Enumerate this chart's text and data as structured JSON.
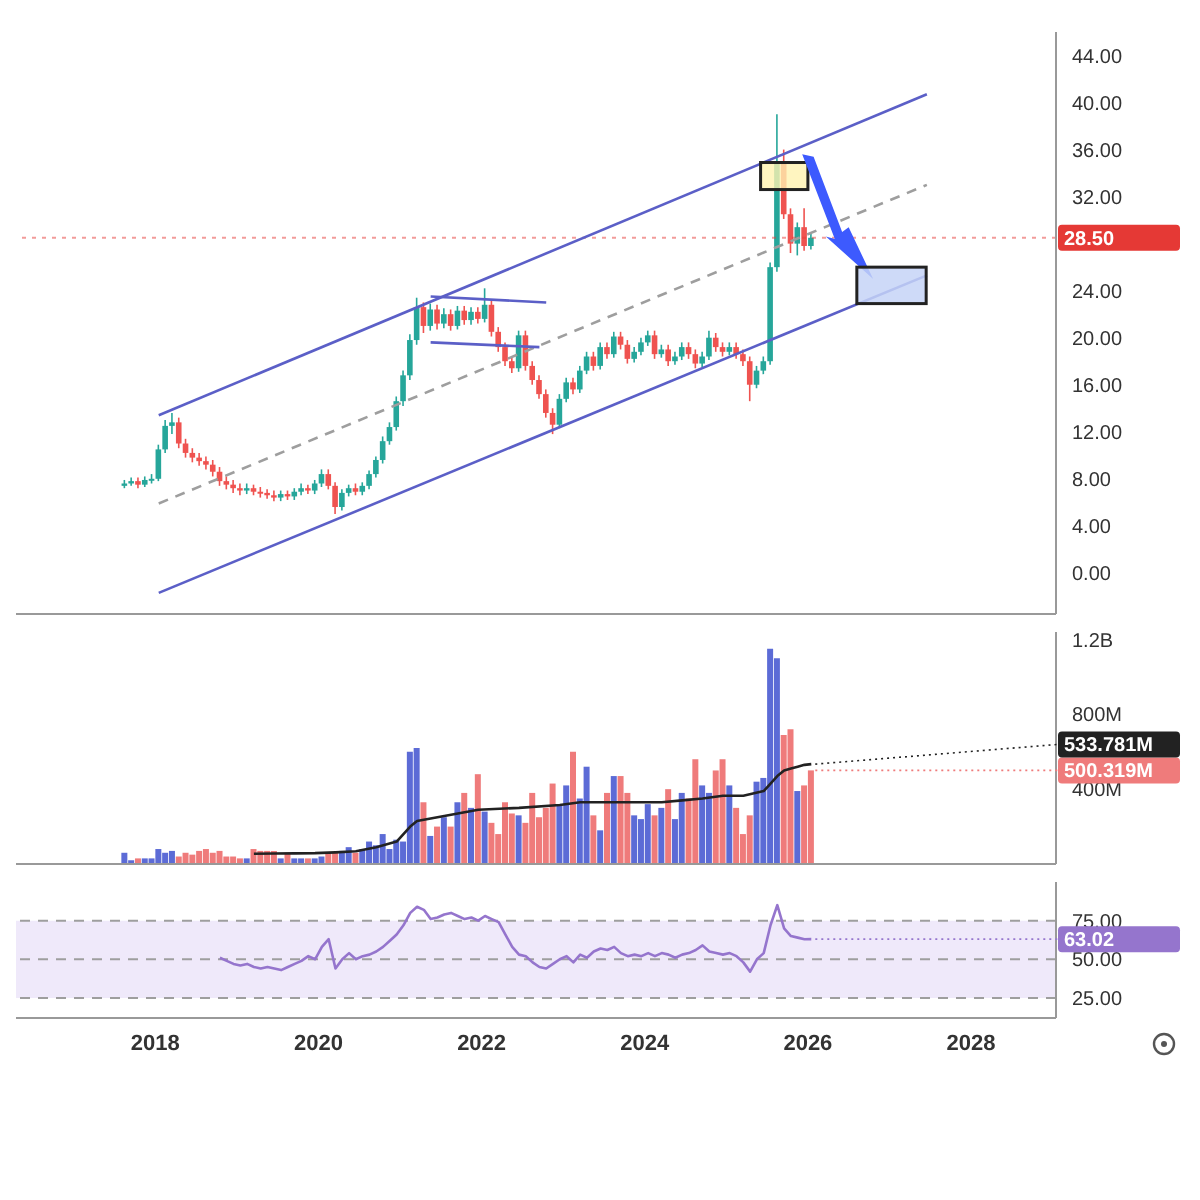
{
  "chart_data": [
    {
      "type": "candlestick",
      "tick_labels": "y",
      "xlim": [
        "2016-04",
        "2029-01"
      ],
      "xticks": [
        "2018",
        "2020",
        "2022",
        "2024",
        "2026",
        "2028"
      ],
      "ylim": [
        -3.5,
        46
      ],
      "yticks": [
        {
          "value": 0,
          "label": "0.00"
        },
        {
          "value": 4,
          "label": "4.00"
        },
        {
          "value": 8,
          "label": "8.00"
        },
        {
          "value": 12,
          "label": "12.00"
        },
        {
          "value": 16,
          "label": "16.00"
        },
        {
          "value": 20,
          "label": "20.00"
        },
        {
          "value": 24,
          "label": "24.00"
        },
        {
          "value": 32,
          "label": "32.00"
        },
        {
          "value": 36,
          "label": "36.00"
        },
        {
          "value": 40,
          "label": "40.00"
        },
        {
          "value": 44,
          "label": "44.00"
        }
      ],
      "x": [
        "2017-08",
        "2017-09",
        "2017-10",
        "2017-11",
        "2017-12",
        "2018-01",
        "2018-02",
        "2018-03",
        "2018-04",
        "2018-05",
        "2018-06",
        "2018-07",
        "2018-08",
        "2018-09",
        "2018-10",
        "2018-11",
        "2018-12",
        "2019-01",
        "2019-02",
        "2019-03",
        "2019-04",
        "2019-05",
        "2019-06",
        "2019-07",
        "2019-08",
        "2019-09",
        "2019-10",
        "2019-11",
        "2019-12",
        "2020-01",
        "2020-02",
        "2020-03",
        "2020-04",
        "2020-05",
        "2020-06",
        "2020-07",
        "2020-08",
        "2020-09",
        "2020-10",
        "2020-11",
        "2020-12",
        "2021-01",
        "2021-02",
        "2021-03",
        "2021-04",
        "2021-05",
        "2021-06",
        "2021-07",
        "2021-08",
        "2021-09",
        "2021-10",
        "2021-11",
        "2021-12",
        "2022-01",
        "2022-02",
        "2022-03",
        "2022-04",
        "2022-05",
        "2022-06",
        "2022-07",
        "2022-08",
        "2022-09",
        "2022-10",
        "2022-11",
        "2022-12",
        "2023-01",
        "2023-02",
        "2023-03",
        "2023-04",
        "2023-05",
        "2023-06",
        "2023-07",
        "2023-08",
        "2023-09",
        "2023-10",
        "2023-11",
        "2023-12",
        "2024-01",
        "2024-02",
        "2024-03",
        "2024-04",
        "2024-05",
        "2024-06",
        "2024-07",
        "2024-08",
        "2024-09",
        "2024-10",
        "2024-11",
        "2024-12",
        "2025-01",
        "2025-02",
        "2025-03",
        "2025-04",
        "2025-05",
        "2025-06",
        "2025-07",
        "2025-08",
        "2025-09",
        "2025-10",
        "2025-11",
        "2025-12",
        "2026-01"
      ],
      "ohlc": [
        [
          7.4,
          7.9,
          7.2,
          7.6
        ],
        [
          7.6,
          8.1,
          7.4,
          7.8
        ],
        [
          7.8,
          8.1,
          7.2,
          7.5
        ],
        [
          7.5,
          8.2,
          7.3,
          7.9
        ],
        [
          7.9,
          8.4,
          7.6,
          8.0
        ],
        [
          8.0,
          10.9,
          7.8,
          10.5
        ],
        [
          10.5,
          13.0,
          10.2,
          12.5
        ],
        [
          12.5,
          13.6,
          11.8,
          12.8
        ],
        [
          12.8,
          13.2,
          10.6,
          11.0
        ],
        [
          11.0,
          11.4,
          9.8,
          10.2
        ],
        [
          10.2,
          10.6,
          9.4,
          9.8
        ],
        [
          9.8,
          10.2,
          9.1,
          9.5
        ],
        [
          9.5,
          9.9,
          8.8,
          9.2
        ],
        [
          9.2,
          9.6,
          8.2,
          8.6
        ],
        [
          8.6,
          9.0,
          7.4,
          7.8
        ],
        [
          7.8,
          8.2,
          7.1,
          7.5
        ],
        [
          7.5,
          7.9,
          6.8,
          7.2
        ],
        [
          7.2,
          7.6,
          6.6,
          7.0
        ],
        [
          7.0,
          7.6,
          6.7,
          7.2
        ],
        [
          7.2,
          7.5,
          6.6,
          6.9
        ],
        [
          6.9,
          7.3,
          6.4,
          6.8
        ],
        [
          6.8,
          7.1,
          6.3,
          6.6
        ],
        [
          6.6,
          7.0,
          6.1,
          6.4
        ],
        [
          6.4,
          7.0,
          6.1,
          6.7
        ],
        [
          6.7,
          7.0,
          6.2,
          6.5
        ],
        [
          6.5,
          7.2,
          6.2,
          6.9
        ],
        [
          6.9,
          7.6,
          6.6,
          7.2
        ],
        [
          7.2,
          7.5,
          6.7,
          7.0
        ],
        [
          7.0,
          7.9,
          6.7,
          7.6
        ],
        [
          7.6,
          8.8,
          7.3,
          8.4
        ],
        [
          8.4,
          8.8,
          7.1,
          7.4
        ],
        [
          7.4,
          7.7,
          5.0,
          5.6
        ],
        [
          5.6,
          7.1,
          5.3,
          6.8
        ],
        [
          6.8,
          7.5,
          6.5,
          7.2
        ],
        [
          7.2,
          7.6,
          6.6,
          6.9
        ],
        [
          6.9,
          7.7,
          6.6,
          7.4
        ],
        [
          7.4,
          8.7,
          7.1,
          8.4
        ],
        [
          8.4,
          9.9,
          8.1,
          9.6
        ],
        [
          9.6,
          11.6,
          9.3,
          11.2
        ],
        [
          11.2,
          12.8,
          10.9,
          12.4
        ],
        [
          12.4,
          15.0,
          12.1,
          14.6
        ],
        [
          14.6,
          17.2,
          14.2,
          16.8
        ],
        [
          16.8,
          20.3,
          16.4,
          19.8
        ],
        [
          19.8,
          23.4,
          19.4,
          22.6
        ],
        [
          22.6,
          23.0,
          20.4,
          21.0
        ],
        [
          21.0,
          22.9,
          20.6,
          22.4
        ],
        [
          22.4,
          22.8,
          20.7,
          21.2
        ],
        [
          21.2,
          22.5,
          20.8,
          22.0
        ],
        [
          22.0,
          22.4,
          20.6,
          21.0
        ],
        [
          21.0,
          22.7,
          20.7,
          22.3
        ],
        [
          22.3,
          22.7,
          21.1,
          21.5
        ],
        [
          21.5,
          22.6,
          21.1,
          22.2
        ],
        [
          22.2,
          22.6,
          21.2,
          21.6
        ],
        [
          21.6,
          24.2,
          21.3,
          22.8
        ],
        [
          22.8,
          23.2,
          20.1,
          20.5
        ],
        [
          20.5,
          20.9,
          18.8,
          19.2
        ],
        [
          19.2,
          19.6,
          17.6,
          18.0
        ],
        [
          18.0,
          18.4,
          17.0,
          17.4
        ],
        [
          17.4,
          20.6,
          17.1,
          20.2
        ],
        [
          20.2,
          20.6,
          17.2,
          17.6
        ],
        [
          17.6,
          18.0,
          16.0,
          16.4
        ],
        [
          16.4,
          16.8,
          14.8,
          15.2
        ],
        [
          15.2,
          15.6,
          13.2,
          13.6
        ],
        [
          13.6,
          14.0,
          11.8,
          12.6
        ],
        [
          12.6,
          15.2,
          12.3,
          14.8
        ],
        [
          14.8,
          16.6,
          14.5,
          16.2
        ],
        [
          16.2,
          16.6,
          15.2,
          15.6
        ],
        [
          15.6,
          17.6,
          15.3,
          17.2
        ],
        [
          17.2,
          18.8,
          16.9,
          18.4
        ],
        [
          18.4,
          18.8,
          17.2,
          17.6
        ],
        [
          17.6,
          19.6,
          17.3,
          19.2
        ],
        [
          19.2,
          19.6,
          18.2,
          18.6
        ],
        [
          18.6,
          20.5,
          18.3,
          20.1
        ],
        [
          20.1,
          20.5,
          19.0,
          19.4
        ],
        [
          19.4,
          19.8,
          17.8,
          18.2
        ],
        [
          18.2,
          19.2,
          17.9,
          18.8
        ],
        [
          18.8,
          20.0,
          18.5,
          19.6
        ],
        [
          19.6,
          20.6,
          19.3,
          20.2
        ],
        [
          20.2,
          20.6,
          18.2,
          18.6
        ],
        [
          18.6,
          19.4,
          18.3,
          19.0
        ],
        [
          19.0,
          19.4,
          17.6,
          18.0
        ],
        [
          18.0,
          18.8,
          17.7,
          18.4
        ],
        [
          18.4,
          19.6,
          18.1,
          19.2
        ],
        [
          19.2,
          19.6,
          18.2,
          18.6
        ],
        [
          18.6,
          19.0,
          17.4,
          17.8
        ],
        [
          17.8,
          18.8,
          17.5,
          18.4
        ],
        [
          18.4,
          20.6,
          18.1,
          20.0
        ],
        [
          20.0,
          20.4,
          18.8,
          19.2
        ],
        [
          19.2,
          19.6,
          18.4,
          18.8
        ],
        [
          18.8,
          19.6,
          18.5,
          19.2
        ],
        [
          19.2,
          19.6,
          18.2,
          18.6
        ],
        [
          18.6,
          19.0,
          17.6,
          18.0
        ],
        [
          18.0,
          18.4,
          14.6,
          16.0
        ],
        [
          16.0,
          17.6,
          15.7,
          17.2
        ],
        [
          17.2,
          18.4,
          16.9,
          18.0
        ],
        [
          18.0,
          26.4,
          17.7,
          26.0
        ],
        [
          26.0,
          39.0,
          25.6,
          35.0
        ],
        [
          35.0,
          36.0,
          30.1,
          30.5
        ],
        [
          30.5,
          31.0,
          27.2,
          28.0
        ],
        [
          28.0,
          29.8,
          27.0,
          29.4
        ],
        [
          29.4,
          31.0,
          27.4,
          27.8
        ],
        [
          27.8,
          29.0,
          27.5,
          28.5
        ]
      ],
      "colors": [
        "#26a69a",
        "#26a69a",
        "#ef5350",
        "#26a69a",
        "#26a69a",
        "#26a69a",
        "#26a69a",
        "#26a69a",
        "#ef5350",
        "#ef5350",
        "#ef5350",
        "#ef5350",
        "#ef5350",
        "#ef5350",
        "#ef5350",
        "#ef5350",
        "#ef5350",
        "#ef5350",
        "#26a69a",
        "#ef5350",
        "#ef5350",
        "#ef5350",
        "#ef5350",
        "#26a69a",
        "#ef5350",
        "#26a69a",
        "#26a69a",
        "#ef5350",
        "#26a69a",
        "#26a69a",
        "#ef5350",
        "#ef5350",
        "#26a69a",
        "#26a69a",
        "#ef5350",
        "#26a69a",
        "#26a69a",
        "#26a69a",
        "#26a69a",
        "#26a69a",
        "#26a69a",
        "#26a69a",
        "#26a69a",
        "#26a69a",
        "#ef5350",
        "#26a69a",
        "#ef5350",
        "#26a69a",
        "#ef5350",
        "#26a69a",
        "#ef5350",
        "#26a69a",
        "#ef5350",
        "#26a69a",
        "#ef5350",
        "#ef5350",
        "#ef5350",
        "#ef5350",
        "#26a69a",
        "#ef5350",
        "#ef5350",
        "#ef5350",
        "#ef5350",
        "#ef5350",
        "#26a69a",
        "#26a69a",
        "#ef5350",
        "#26a69a",
        "#26a69a",
        "#ef5350",
        "#26a69a",
        "#ef5350",
        "#26a69a",
        "#ef5350",
        "#ef5350",
        "#26a69a",
        "#26a69a",
        "#26a69a",
        "#ef5350",
        "#26a69a",
        "#ef5350",
        "#26a69a",
        "#26a69a",
        "#ef5350",
        "#ef5350",
        "#26a69a",
        "#26a69a",
        "#ef5350",
        "#ef5350",
        "#26a69a",
        "#ef5350",
        "#ef5350",
        "#ef5350",
        "#26a69a",
        "#26a69a",
        "#26a69a",
        "#26a69a",
        "#ef5350",
        "#ef5350",
        "#26a69a",
        "#ef5350",
        "#26a69a"
      ],
      "series": [
        {
          "type": "line",
          "color": "#5b5fc7",
          "x": [
            "2018-01",
            "2027-06"
          ],
          "values": [
            13.4,
            40.7
          ]
        },
        {
          "type": "line",
          "color": "#9e9e9e",
          "line_style": "dashed",
          "x": [
            "2018-01",
            "2027-06"
          ],
          "values": [
            5.9,
            33.0
          ]
        },
        {
          "type": "line",
          "color": "#5b5fc7",
          "x": [
            "2018-01",
            "2027-06"
          ],
          "values": [
            -1.7,
            25.3
          ]
        },
        {
          "type": "line",
          "color": "#5b5fc7",
          "x": [
            "2021-05",
            "2022-10"
          ],
          "values": [
            23.5,
            23.0
          ]
        },
        {
          "type": "line",
          "color": "#5b5fc7",
          "x": [
            "2021-05",
            "2022-09"
          ],
          "values": [
            19.6,
            19.2
          ]
        }
      ],
      "ref_lines": [
        {
          "axis": "y",
          "value": 28.5,
          "label": "28.50",
          "color": "#e53935",
          "line_style": "dotted"
        }
      ]
    },
    {
      "type": "bar",
      "tick_labels": "y",
      "xlim": [
        "2016-04",
        "2029-01"
      ],
      "xticks": [
        "2018",
        "2020",
        "2022",
        "2024",
        "2026",
        "2028"
      ],
      "ylim": [
        0,
        1240000000
      ],
      "yticks": [
        {
          "value": 400000000,
          "label": "400M"
        },
        {
          "value": 800000000,
          "label": "800M"
        },
        {
          "value": 1200000000,
          "label": "1.2B"
        }
      ],
      "x": [
        "2017-08",
        "2017-09",
        "2017-10",
        "2017-11",
        "2017-12",
        "2018-01",
        "2018-02",
        "2018-03",
        "2018-04",
        "2018-05",
        "2018-06",
        "2018-07",
        "2018-08",
        "2018-09",
        "2018-10",
        "2018-11",
        "2018-12",
        "2019-01",
        "2019-02",
        "2019-03",
        "2019-04",
        "2019-05",
        "2019-06",
        "2019-07",
        "2019-08",
        "2019-09",
        "2019-10",
        "2019-11",
        "2019-12",
        "2020-01",
        "2020-02",
        "2020-03",
        "2020-04",
        "2020-05",
        "2020-06",
        "2020-07",
        "2020-08",
        "2020-09",
        "2020-10",
        "2020-11",
        "2020-12",
        "2021-01",
        "2021-02",
        "2021-03",
        "2021-04",
        "2021-05",
        "2021-06",
        "2021-07",
        "2021-08",
        "2021-09",
        "2021-10",
        "2021-11",
        "2021-12",
        "2022-01",
        "2022-02",
        "2022-03",
        "2022-04",
        "2022-05",
        "2022-06",
        "2022-07",
        "2022-08",
        "2022-09",
        "2022-10",
        "2022-11",
        "2022-12",
        "2023-01",
        "2023-02",
        "2023-03",
        "2023-04",
        "2023-05",
        "2023-06",
        "2023-07",
        "2023-08",
        "2023-09",
        "2023-10",
        "2023-11",
        "2023-12",
        "2024-01",
        "2024-02",
        "2024-03",
        "2024-04",
        "2024-05",
        "2024-06",
        "2024-07",
        "2024-08",
        "2024-09",
        "2024-10",
        "2024-11",
        "2024-12",
        "2025-01",
        "2025-02",
        "2025-03",
        "2025-04",
        "2025-05",
        "2025-06",
        "2025-07",
        "2025-08",
        "2025-09",
        "2025-10",
        "2025-11",
        "2025-12",
        "2026-01"
      ],
      "series": [
        {
          "type": "bar",
          "values": [
            60000000.0,
            20000000.0,
            30000000.0,
            30000000.0,
            30000000.0,
            80000000.0,
            60000000.0,
            70000000.0,
            40000000.0,
            60000000.0,
            50000000.0,
            70000000.0,
            80000000.0,
            60000000.0,
            70000000.0,
            40000000.0,
            40000000.0,
            30000000.0,
            30000000.0,
            80000000.0,
            70000000.0,
            70000000.0,
            70000000.0,
            30000000.0,
            60000000.0,
            30000000.0,
            30000000.0,
            30000000.0,
            30000000.0,
            40000000.0,
            60000000.0,
            60000000.0,
            70000000.0,
            90000000.0,
            60000000.0,
            80000000.0,
            120000000.0,
            100000000.0,
            160000000.0,
            80000000.0,
            130000000.0,
            120000000.0,
            600000000.0,
            620000000.0,
            330000000.0,
            150000000.0,
            200000000.0,
            250000000.0,
            200000000.0,
            330000000.0,
            380000000.0,
            300000000.0,
            480000000.0,
            280000000.0,
            220000000.0,
            160000000.0,
            330000000.0,
            270000000.0,
            260000000.0,
            220000000.0,
            380000000.0,
            250000000.0,
            300000000.0,
            430000000.0,
            320000000.0,
            420000000.0,
            600000000.0,
            350000000.0,
            520000000.0,
            260000000.0,
            180000000.0,
            380000000.0,
            470000000.0,
            470000000.0,
            380000000.0,
            260000000.0,
            240000000.0,
            320000000.0,
            260000000.0,
            300000000.0,
            400000000.0,
            240000000.0,
            380000000.0,
            350000000.0,
            560000000.0,
            420000000.0,
            380000000.0,
            500000000.0,
            560000000.0,
            420000000.0,
            300000000.0,
            160000000.0,
            260000000.0,
            440000000.0,
            460000000.0,
            1150000000.0,
            1100000000.0,
            690000000.0,
            720000000.0,
            390000000.0,
            420000000.0,
            500319000
          ],
          "value_labels": [
            null,
            null,
            null,
            null,
            null,
            null,
            null,
            null,
            null,
            null,
            null,
            null,
            null,
            null,
            null,
            null,
            null,
            null,
            null,
            null,
            null,
            null,
            null,
            null,
            null,
            null,
            null,
            null,
            null,
            null,
            null,
            null,
            null,
            null,
            null,
            null,
            null,
            null,
            null,
            null,
            null,
            null,
            null,
            null,
            null,
            null,
            null,
            null,
            null,
            null,
            null,
            null,
            null,
            null,
            null,
            null,
            null,
            null,
            null,
            null,
            null,
            null,
            null,
            null,
            null,
            null,
            null,
            null,
            null,
            null,
            null,
            null,
            null,
            null,
            null,
            null,
            null,
            null,
            null,
            null,
            null,
            null,
            null,
            null,
            null,
            null,
            null,
            null,
            null,
            null,
            null,
            null,
            null,
            null,
            null,
            null,
            null,
            null,
            null,
            null,
            null,
            "500.319M"
          ],
          "colors": [
            "#5c6bd6",
            "#5c6bd6",
            "#ef7b7b",
            "#5c6bd6",
            "#5c6bd6",
            "#5c6bd6",
            "#5c6bd6",
            "#5c6bd6",
            "#ef7b7b",
            "#ef7b7b",
            "#ef7b7b",
            "#ef7b7b",
            "#ef7b7b",
            "#ef7b7b",
            "#ef7b7b",
            "#ef7b7b",
            "#ef7b7b",
            "#ef7b7b",
            "#5c6bd6",
            "#ef7b7b",
            "#ef7b7b",
            "#ef7b7b",
            "#ef7b7b",
            "#5c6bd6",
            "#ef7b7b",
            "#5c6bd6",
            "#5c6bd6",
            "#ef7b7b",
            "#5c6bd6",
            "#5c6bd6",
            "#ef7b7b",
            "#ef7b7b",
            "#5c6bd6",
            "#5c6bd6",
            "#ef7b7b",
            "#5c6bd6",
            "#5c6bd6",
            "#5c6bd6",
            "#5c6bd6",
            "#5c6bd6",
            "#5c6bd6",
            "#5c6bd6",
            "#5c6bd6",
            "#5c6bd6",
            "#ef7b7b",
            "#5c6bd6",
            "#ef7b7b",
            "#5c6bd6",
            "#ef7b7b",
            "#5c6bd6",
            "#ef7b7b",
            "#5c6bd6",
            "#ef7b7b",
            "#5c6bd6",
            "#ef7b7b",
            "#ef7b7b",
            "#ef7b7b",
            "#ef7b7b",
            "#5c6bd6",
            "#ef7b7b",
            "#ef7b7b",
            "#ef7b7b",
            "#ef7b7b",
            "#ef7b7b",
            "#5c6bd6",
            "#5c6bd6",
            "#ef7b7b",
            "#5c6bd6",
            "#5c6bd6",
            "#ef7b7b",
            "#5c6bd6",
            "#ef7b7b",
            "#5c6bd6",
            "#ef7b7b",
            "#ef7b7b",
            "#5c6bd6",
            "#5c6bd6",
            "#5c6bd6",
            "#ef7b7b",
            "#5c6bd6",
            "#ef7b7b",
            "#5c6bd6",
            "#5c6bd6",
            "#ef7b7b",
            "#ef7b7b",
            "#5c6bd6",
            "#5c6bd6",
            "#ef7b7b",
            "#ef7b7b",
            "#5c6bd6",
            "#ef7b7b",
            "#ef7b7b",
            "#ef7b7b",
            "#5c6bd6",
            "#5c6bd6",
            "#5c6bd6",
            "#5c6bd6",
            "#ef7b7b",
            "#ef7b7b",
            "#5c6bd6",
            "#ef7b7b",
            "#ef7b7b"
          ]
        },
        {
          "type": "line",
          "color": "#222222",
          "x": [
            "2019-03",
            "2019-06",
            "2019-09",
            "2019-12",
            "2020-03",
            "2020-06",
            "2020-09",
            "2020-12",
            "2021-02",
            "2021-03",
            "2021-06",
            "2021-09",
            "2021-12",
            "2022-06",
            "2022-12",
            "2023-03",
            "2023-06",
            "2023-12",
            "2024-03",
            "2024-06",
            "2024-09",
            "2024-12",
            "2025-03",
            "2025-06",
            "2025-07",
            "2025-08",
            "2025-09",
            "2025-10",
            "2025-11",
            "2025-12",
            "2026-01"
          ],
          "values": [
            55000000.0,
            56000000.0,
            57000000.0,
            58000000.0,
            62000000.0,
            68000000.0,
            90000000.0,
            120000000.0,
            200000000.0,
            230000000.0,
            250000000.0,
            270000000.0,
            290000000.0,
            300000000.0,
            315000000.0,
            330000000.0,
            330000000.0,
            330000000.0,
            330000000.0,
            340000000.0,
            350000000.0,
            365000000.0,
            365000000.0,
            390000000.0,
            430000000.0,
            470000000.0,
            500000000.0,
            510000000.0,
            520000000.0,
            530000000.0,
            533781000
          ],
          "value_labels": [
            null,
            null,
            null,
            null,
            null,
            null,
            null,
            null,
            null,
            null,
            null,
            null,
            null,
            null,
            null,
            null,
            null,
            null,
            null,
            null,
            null,
            null,
            null,
            null,
            null,
            null,
            null,
            null,
            null,
            null,
            "533.781M"
          ]
        }
      ]
    },
    {
      "type": "line",
      "xlim": [
        "2016-04",
        "2029-01"
      ],
      "xticks": [
        "2018",
        "2020",
        "2022",
        "2024",
        "2026",
        "2028"
      ],
      "ylim": [
        12,
        100
      ],
      "yticks": [
        {
          "value": 25,
          "label": "25.00"
        },
        {
          "value": 50,
          "label": "50.00"
        },
        {
          "value": 75,
          "label": "75.00"
        }
      ],
      "series": [
        {
          "color": "#9575cd",
          "value_labels": [
            null,
            null,
            null,
            null,
            null,
            null,
            null,
            null,
            null,
            null,
            null,
            null,
            null,
            null,
            null,
            null,
            null,
            null,
            null,
            null,
            null,
            null,
            null,
            null,
            null,
            null,
            null,
            null,
            null,
            null,
            null,
            null,
            null,
            null,
            null,
            null,
            null,
            null,
            null,
            null,
            null,
            null,
            null,
            null,
            null,
            null,
            null,
            null,
            null,
            null,
            null,
            null,
            null,
            null,
            null,
            null,
            null,
            null,
            null,
            null,
            null,
            null,
            null,
            null,
            null,
            null,
            null,
            null,
            null,
            null,
            null,
            null,
            null,
            null,
            null,
            null,
            null,
            null,
            null,
            null,
            null,
            null,
            null,
            null,
            null,
            null,
            null,
            "63.02"
          ],
          "x": [
            "2018-10",
            "2018-11",
            "2018-12",
            "2019-01",
            "2019-02",
            "2019-03",
            "2019-04",
            "2019-05",
            "2019-06",
            "2019-07",
            "2019-08",
            "2019-09",
            "2019-10",
            "2019-11",
            "2019-12",
            "2020-01",
            "2020-02",
            "2020-03",
            "2020-04",
            "2020-05",
            "2020-06",
            "2020-07",
            "2020-08",
            "2020-09",
            "2020-10",
            "2020-11",
            "2020-12",
            "2021-01",
            "2021-02",
            "2021-03",
            "2021-04",
            "2021-05",
            "2021-06",
            "2021-07",
            "2021-08",
            "2021-09",
            "2021-10",
            "2021-11",
            "2021-12",
            "2022-01",
            "2022-02",
            "2022-03",
            "2022-04",
            "2022-05",
            "2022-06",
            "2022-07",
            "2022-08",
            "2022-09",
            "2022-10",
            "2022-11",
            "2022-12",
            "2023-01",
            "2023-02",
            "2023-03",
            "2023-04",
            "2023-05",
            "2023-06",
            "2023-07",
            "2023-08",
            "2023-09",
            "2023-10",
            "2023-11",
            "2023-12",
            "2024-01",
            "2024-02",
            "2024-03",
            "2024-04",
            "2024-05",
            "2024-06",
            "2024-07",
            "2024-08",
            "2024-09",
            "2024-10",
            "2024-11",
            "2024-12",
            "2025-01",
            "2025-02",
            "2025-03",
            "2025-04",
            "2025-05",
            "2025-06",
            "2025-07",
            "2025-08",
            "2025-09",
            "2025-10",
            "2025-11",
            "2025-12",
            "2026-01"
          ],
          "values": [
            51,
            49,
            47,
            46,
            47,
            45,
            44,
            45,
            44,
            43,
            45,
            47,
            49,
            52,
            50,
            58,
            63,
            44,
            50,
            54,
            50,
            52,
            53,
            55,
            58,
            62,
            66,
            72,
            80,
            84,
            82,
            76,
            77,
            79,
            80,
            78,
            76,
            77,
            75,
            78,
            76,
            74,
            66,
            58,
            53,
            52,
            48,
            45,
            44,
            47,
            50,
            52,
            48,
            53,
            51,
            55,
            57,
            56,
            58,
            54,
            52,
            53,
            52,
            54,
            52,
            54,
            53,
            51,
            53,
            54,
            56,
            59,
            55,
            54,
            53,
            54,
            52,
            48,
            42,
            50,
            54,
            72,
            85,
            70,
            65,
            64,
            63,
            63.02
          ]
        }
      ],
      "bands": [
        {
          "axis": "y",
          "from": 25,
          "to": 75,
          "color": "#efe9fa"
        }
      ],
      "ref_lines": [
        {
          "axis": "y",
          "value": 75,
          "color": "#9e9e9e",
          "line_style": "dashed"
        },
        {
          "axis": "y",
          "value": 50,
          "color": "#9e9e9e",
          "line_style": "dashed"
        },
        {
          "axis": "y",
          "value": 25,
          "color": "#9e9e9e",
          "line_style": "dashed"
        }
      ]
    }
  ]
}
